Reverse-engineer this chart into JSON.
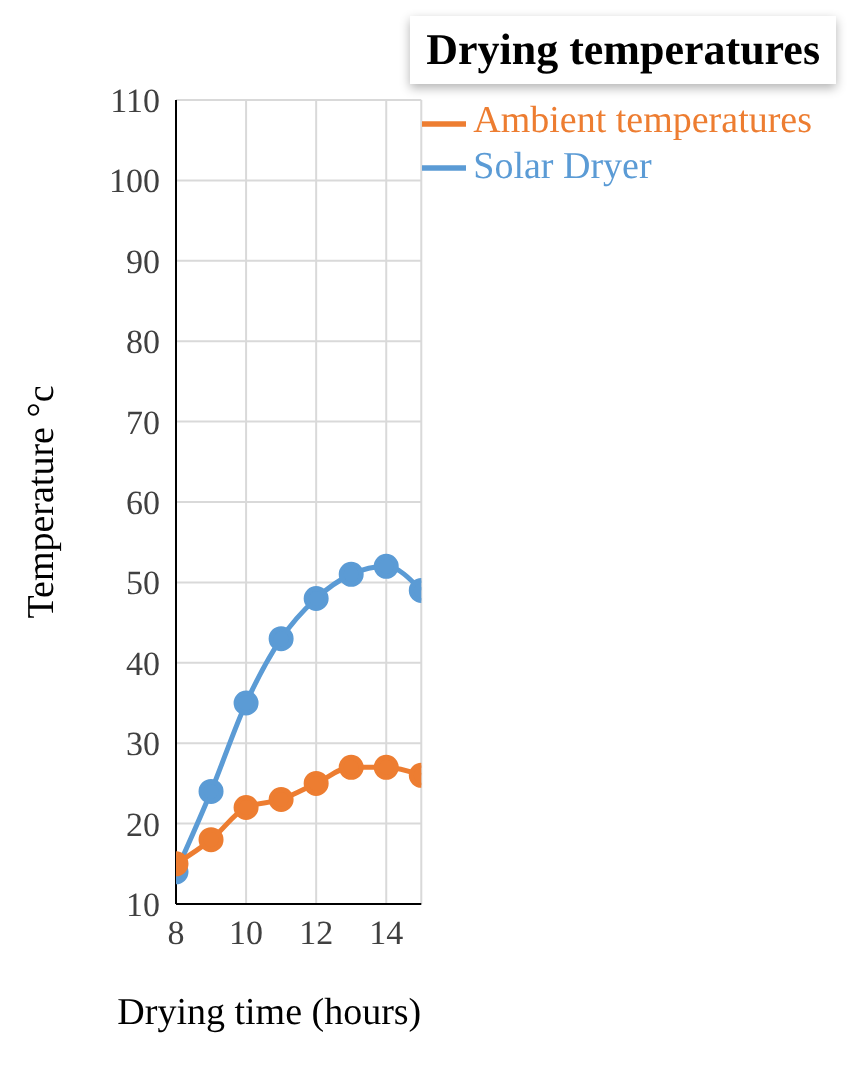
{
  "chart_data": {
    "type": "line",
    "title": "Drying temperatures",
    "xlabel": "Drying time (hours)",
    "ylabel": "Temperature °c",
    "x": [
      8,
      9,
      10,
      11,
      12,
      13,
      14,
      15
    ],
    "series": [
      {
        "name": "Solar Dryer",
        "color": "#5b9bd5",
        "values": [
          14,
          24,
          35,
          43,
          48,
          51,
          52,
          49
        ]
      },
      {
        "name": "Ambient temperatures",
        "color": "#ed7d31",
        "values": [
          15,
          18,
          22,
          23,
          25,
          27,
          27,
          26
        ]
      }
    ],
    "xlim": [
      8,
      15
    ],
    "xticks": [
      8,
      10,
      12,
      14
    ],
    "ylim": [
      10,
      110
    ],
    "yticks": [
      10,
      20,
      30,
      40,
      50,
      60,
      70,
      80,
      90,
      100,
      110
    ],
    "grid": true,
    "legend": "top right",
    "marker": "circle",
    "line_style": "solid"
  }
}
